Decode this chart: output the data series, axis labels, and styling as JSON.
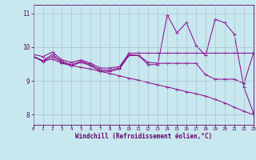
{
  "xlabel": "Windchill (Refroidissement éolien,°C)",
  "background_color": "#c8e8f0",
  "line_color": "#880088",
  "grid_color": "#aabbcc",
  "xlim": [
    0,
    23
  ],
  "ylim": [
    7.7,
    11.25
  ],
  "xticks": [
    0,
    1,
    2,
    3,
    4,
    5,
    6,
    7,
    8,
    9,
    10,
    11,
    12,
    13,
    14,
    15,
    16,
    17,
    18,
    19,
    20,
    21,
    22,
    23
  ],
  "yticks": [
    8,
    9,
    10,
    11
  ],
  "lines": [
    {
      "x": [
        0,
        1,
        2,
        3,
        4,
        5,
        6,
        7,
        8,
        9,
        10,
        11,
        12,
        13,
        14,
        15,
        16,
        17,
        18,
        19,
        20,
        21,
        22,
        23
      ],
      "y": [
        9.78,
        9.72,
        9.85,
        9.62,
        9.55,
        9.62,
        9.52,
        9.38,
        9.38,
        9.42,
        9.82,
        9.82,
        9.82,
        9.82,
        9.82,
        9.82,
        9.82,
        9.82,
        9.82,
        9.82,
        9.82,
        9.82,
        9.82,
        9.82
      ]
    },
    {
      "x": [
        0,
        1,
        2,
        3,
        4,
        5,
        6,
        7,
        8,
        9,
        10,
        11,
        12,
        13,
        14,
        15,
        16,
        17,
        18,
        19,
        20,
        21,
        22,
        23
      ],
      "y": [
        9.72,
        9.6,
        9.78,
        9.58,
        9.48,
        9.58,
        9.48,
        9.32,
        9.32,
        9.38,
        9.78,
        9.75,
        9.55,
        9.52,
        9.52,
        9.52,
        9.52,
        9.52,
        9.18,
        9.05,
        9.05,
        9.05,
        8.92,
        9.82
      ]
    },
    {
      "x": [
        0,
        1,
        2,
        3,
        4,
        5,
        6,
        7,
        8,
        9,
        10,
        11,
        12,
        13,
        14,
        15,
        16,
        17,
        18,
        19,
        20,
        21,
        22,
        23
      ],
      "y": [
        9.72,
        9.58,
        9.65,
        9.52,
        9.45,
        9.4,
        9.35,
        9.28,
        9.22,
        9.15,
        9.08,
        9.02,
        8.95,
        8.88,
        8.82,
        8.75,
        8.68,
        8.62,
        8.55,
        8.45,
        8.35,
        8.22,
        8.1,
        8.0
      ]
    },
    {
      "x": [
        0,
        1,
        2,
        3,
        4,
        5,
        6,
        7,
        8,
        9,
        10,
        11,
        12,
        13,
        14,
        15,
        16,
        17,
        18,
        19,
        20,
        21,
        22,
        23
      ],
      "y": [
        9.72,
        9.58,
        9.72,
        9.55,
        9.45,
        9.55,
        9.45,
        9.28,
        9.28,
        9.35,
        9.75,
        9.75,
        9.48,
        9.48,
        10.95,
        10.42,
        10.72,
        10.05,
        9.75,
        10.82,
        10.72,
        10.38,
        8.82,
        8.05
      ]
    }
  ]
}
